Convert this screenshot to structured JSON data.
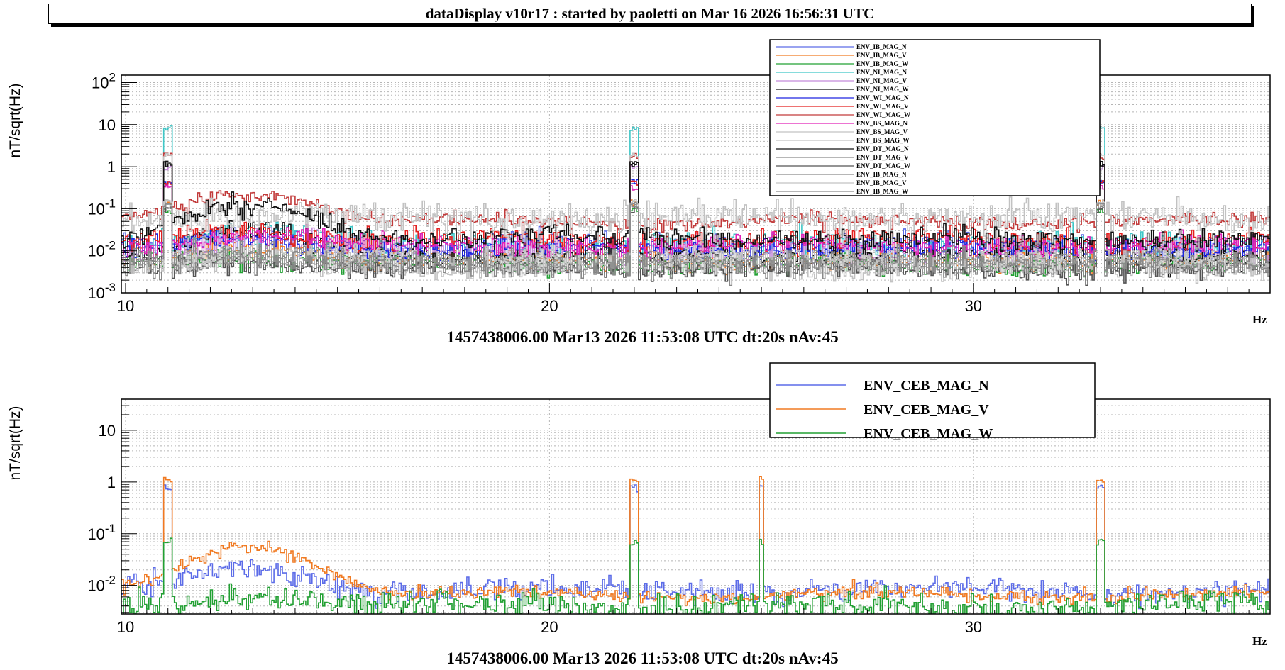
{
  "header": {
    "title": "dataDisplay v10r17 : started by paoletti on Mar 16 2026 16:56:31 UTC"
  },
  "colors": {
    "N": "#5c6ce8",
    "V": "#f07a22",
    "W": "#22a033",
    "cyan": "#3ec7c7",
    "purple": "#c48ad9",
    "black": "#111111",
    "blue": "#1d25e0",
    "brightred": "#e41f1f",
    "darkred": "#c23b3b",
    "magenta": "#e020b8",
    "lightgray": "#c2c2c2",
    "gray": "#8a8a8a",
    "darkgray": "#555555"
  },
  "chart_data": [
    {
      "type": "line",
      "xlabel": "Hz",
      "ylabel": "nT/sqrt(Hz)",
      "x_range": [
        9.9,
        37
      ],
      "y_scale": "log",
      "y_range": [
        0.001,
        150
      ],
      "x_ticks": [
        10,
        20,
        30
      ],
      "y_ticks": [
        {
          "v": 100,
          "m": "10",
          "e": "2"
        },
        {
          "v": 10,
          "m": "10",
          "e": ""
        },
        {
          "v": 1,
          "m": "1",
          "e": ""
        },
        {
          "v": 0.1,
          "m": "10",
          "e": "-1"
        },
        {
          "v": 0.01,
          "m": "10",
          "e": "-2"
        },
        {
          "v": 0.001,
          "m": "10",
          "e": "-3"
        }
      ],
      "grid": true,
      "legend_position": "top-center",
      "footer": "1457438006.00 Mar13 2026 11:53:08 UTC dt:20s nAv:45",
      "peaks": [
        {
          "x": 11.0,
          "w": 0.08
        },
        {
          "x": 22.0,
          "w": 0.08
        },
        {
          "x": 33.0,
          "w": 0.08
        }
      ],
      "series": [
        {
          "name": "ENV_IB_MAG_N",
          "color_key": "N",
          "base": 0.012,
          "hump": 1.5,
          "peak": 3.0,
          "noise": 0.35
        },
        {
          "name": "ENV_IB_MAG_V",
          "color_key": "V",
          "base": 0.006,
          "hump": 2.0,
          "peak": 2.0,
          "noise": 0.3
        },
        {
          "name": "ENV_IB_MAG_W",
          "color_key": "W",
          "base": 0.005,
          "hump": 1.5,
          "peak": 1.5,
          "noise": 0.3
        },
        {
          "name": "ENV_NI_MAG_N",
          "color_key": "cyan",
          "base": 0.014,
          "hump": 2.0,
          "peak": 50,
          "noise": 0.35
        },
        {
          "name": "ENV_NI_MAG_V",
          "color_key": "purple",
          "base": 0.01,
          "hump": 1.8,
          "peak": 8,
          "noise": 0.35
        },
        {
          "name": "ENV_NI_MAG_W",
          "color_key": "black",
          "base": 0.008,
          "hump": 3.5,
          "peak": 12,
          "noise": 0.3
        },
        {
          "name": "ENV_WI_MAG_N",
          "color_key": "blue",
          "base": 0.012,
          "hump": 1.5,
          "peak": 3.0,
          "noise": 0.3
        },
        {
          "name": "ENV_WI_MAG_V",
          "color_key": "brightred",
          "base": 0.018,
          "hump": 1.5,
          "peak": 2.0,
          "noise": 0.3
        },
        {
          "name": "ENV_WI_MAG_W",
          "color_key": "darkred",
          "base": 0.05,
          "hump": 5.0,
          "peak": 3.0,
          "noise": 0.2
        },
        {
          "name": "ENV_BS_MAG_N",
          "color_key": "magenta",
          "base": 0.013,
          "hump": 1.8,
          "peak": 2.0,
          "noise": 0.3
        },
        {
          "name": "ENV_BS_MAG_V",
          "color_key": "lightgray",
          "base": 0.06,
          "hump": 1.0,
          "peak": 2.5,
          "noise": 0.45
        },
        {
          "name": "ENV_BS_MAG_W",
          "color_key": "lightgray",
          "base": 0.004,
          "hump": 1.5,
          "peak": 3.0,
          "noise": 0.3
        },
        {
          "name": "ENV_DT_MAG_N",
          "color_key": "black",
          "base": 0.02,
          "hump": 6.0,
          "peak": 5.0,
          "noise": 0.3
        },
        {
          "name": "ENV_DT_MAG_V",
          "color_key": "gray",
          "base": 0.005,
          "hump": 1.5,
          "peak": 2.0,
          "noise": 0.3
        },
        {
          "name": "ENV_DT_MAG_W",
          "color_key": "darkgray",
          "base": 0.004,
          "hump": 1.5,
          "peak": 2.0,
          "noise": 0.3
        },
        {
          "name": "ENV_IB_MAG_N",
          "color_key": "gray",
          "base": 0.005,
          "hump": 1.5,
          "peak": 2.0,
          "noise": 0.3
        },
        {
          "name": "ENV_IB_MAG_V",
          "color_key": "lightgray",
          "base": 0.006,
          "hump": 1.5,
          "peak": 2.0,
          "noise": 0.3
        },
        {
          "name": "ENV_IB_MAG_W",
          "color_key": "gray",
          "base": 0.005,
          "hump": 1.5,
          "peak": 2.0,
          "noise": 0.3
        }
      ]
    },
    {
      "type": "line",
      "xlabel": "Hz",
      "ylabel": "nT/sqrt(Hz)",
      "x_range": [
        9.9,
        37
      ],
      "y_scale": "log",
      "y_range": [
        0.0028,
        40
      ],
      "x_ticks": [
        10,
        20,
        30
      ],
      "y_ticks": [
        {
          "v": 10,
          "m": "10",
          "e": ""
        },
        {
          "v": 1,
          "m": "1",
          "e": ""
        },
        {
          "v": 0.1,
          "m": "10",
          "e": "-1"
        },
        {
          "v": 0.01,
          "m": "10",
          "e": "-2"
        }
      ],
      "grid": true,
      "legend_position": "top-center",
      "footer": "1457438006.00 Mar13 2026 11:53:08 UTC dt:20s nAv:45",
      "peaks": [
        {
          "x": 11.0,
          "w": 0.08
        },
        {
          "x": 22.0,
          "w": 0.08
        },
        {
          "x": 33.0,
          "w": 0.08
        },
        {
          "x": 25.0,
          "w": 0.06
        }
      ],
      "series": [
        {
          "name": "ENV_CEB_MAG_N",
          "color_key": "N",
          "base": 0.008,
          "hump": 2.5,
          "peak": 8,
          "noise": 0.25
        },
        {
          "name": "ENV_CEB_MAG_V",
          "color_key": "V",
          "base": 0.0065,
          "hump": 9.0,
          "peak": 15,
          "noise": 0.15
        },
        {
          "name": "ENV_CEB_MAG_W",
          "color_key": "W",
          "base": 0.004,
          "hump": 1.5,
          "peak": 1.5,
          "noise": 0.3
        }
      ]
    }
  ]
}
